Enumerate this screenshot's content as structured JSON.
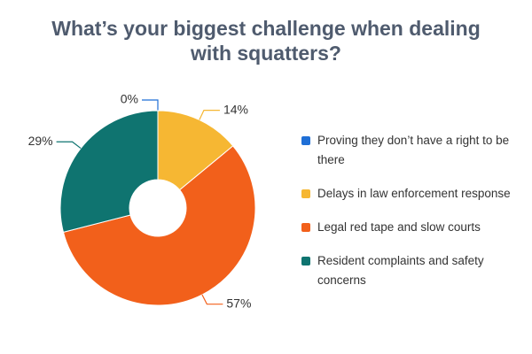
{
  "chart_data": {
    "type": "donut",
    "title": "What’s your biggest challenge when dealing with squatters?",
    "categories": [
      "Proving they don’t have a right to be there",
      "Delays in law enforcement response",
      "Legal red tape and slow courts",
      "Resident complaints and safety concerns"
    ],
    "series": [
      {
        "values": [
          0,
          14,
          57,
          29
        ],
        "value_labels": [
          "0%",
          "14%",
          "57%",
          "29%"
        ]
      }
    ],
    "colors": [
      "#1f6fd6",
      "#f6b733",
      "#f2601b",
      "#0f7470"
    ],
    "legend": "right"
  }
}
